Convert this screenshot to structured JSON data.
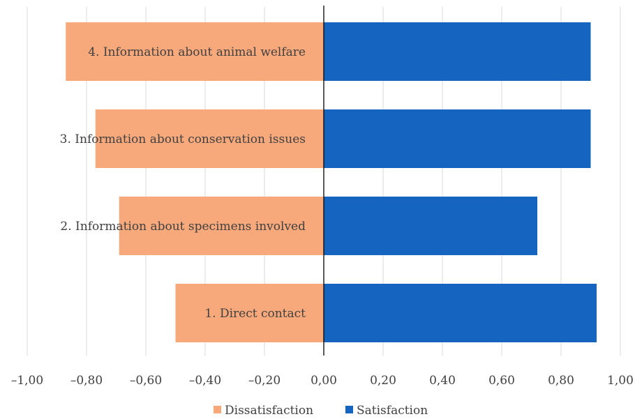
{
  "chart_data": {
    "type": "bar",
    "orientation": "horizontal",
    "stacked": "diverging",
    "categories": [
      "1. Direct contact",
      "2. Information about specimens involved",
      "3. Information about conservation issues",
      "4. Information about animal welfare"
    ],
    "series": [
      {
        "name": "Dissatisfaction",
        "color": "#F8A97B",
        "values": [
          -0.5,
          -0.69,
          -0.77,
          -0.87
        ]
      },
      {
        "name": "Satisfaction",
        "color": "#1565C0",
        "values": [
          0.92,
          0.72,
          0.9,
          0.9
        ]
      }
    ],
    "xlim": [
      -1.0,
      1.0
    ],
    "xticks": [
      -1.0,
      -0.8,
      -0.6,
      -0.4,
      -0.2,
      0.0,
      0.2,
      0.4,
      0.6,
      0.8,
      1.0
    ],
    "xtick_labels": [
      "–1,00",
      "–0,80",
      "–0,60",
      "–0,40",
      "–0,20",
      "0,00",
      "0,20",
      "0,40",
      "0,60",
      "0,80",
      "1,00"
    ],
    "grid": "vertical",
    "legend_position": "bottom"
  }
}
